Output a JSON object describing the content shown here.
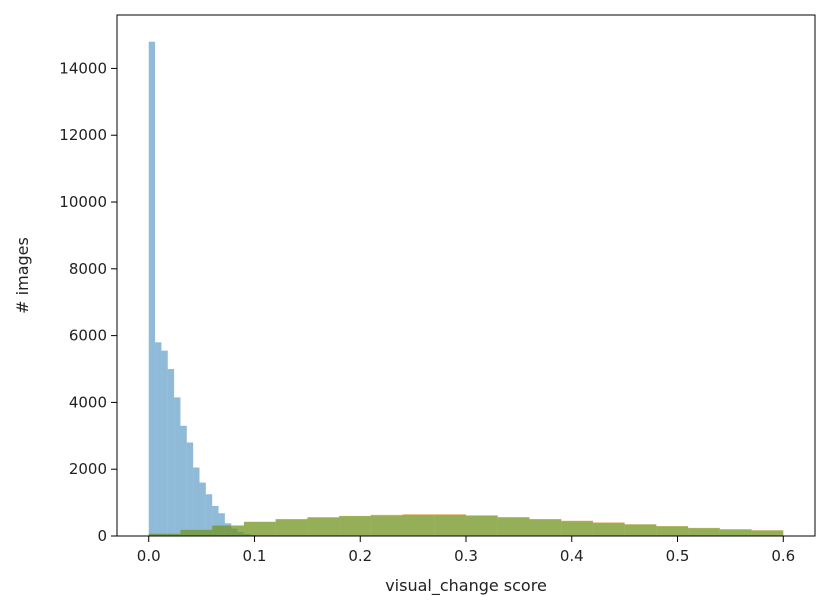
{
  "chart_data": {
    "type": "bar",
    "title": "",
    "xlabel": "visual_change score",
    "ylabel": "# images",
    "xlim": [
      -0.03,
      0.63
    ],
    "ylim": [
      0,
      15600
    ],
    "xticks": [
      0.0,
      0.1,
      0.2,
      0.3,
      0.4,
      0.5,
      0.6
    ],
    "xtick_labels": [
      "0.0",
      "0.1",
      "0.2",
      "0.3",
      "0.4",
      "0.5",
      "0.6"
    ],
    "yticks": [
      0,
      2000,
      4000,
      6000,
      8000,
      10000,
      12000,
      14000
    ],
    "ytick_labels": [
      "0",
      "2000",
      "4000",
      "6000",
      "8000",
      "10000",
      "12000",
      "14000"
    ],
    "grid": false,
    "legend": "none",
    "bin_width": 0.006,
    "bin_start": 0.0,
    "series": [
      {
        "color": "#1f77b4",
        "alpha": 0.5,
        "values": [
          14800,
          5800,
          5550,
          5000,
          4150,
          3300,
          2800,
          2050,
          1600,
          1250,
          900,
          680,
          380,
          220,
          120,
          60,
          30,
          10
        ]
      },
      {
        "color": "#ff7f0e",
        "alpha": 0.5,
        "x": [
          0.0,
          0.03,
          0.06,
          0.09,
          0.12,
          0.15,
          0.18,
          0.21,
          0.24,
          0.27,
          0.3,
          0.33,
          0.36,
          0.39,
          0.42,
          0.45,
          0.48,
          0.51,
          0.54,
          0.57,
          0.6
        ],
        "values": [
          20,
          120,
          260,
          380,
          480,
          540,
          590,
          620,
          650,
          660,
          650,
          600,
          540,
          480,
          440,
          380,
          330,
          270,
          220,
          190,
          160
        ]
      },
      {
        "color": "#2ca02c",
        "alpha": 0.5,
        "x": [
          0.0,
          0.03,
          0.06,
          0.09,
          0.12,
          0.15,
          0.18,
          0.21,
          0.24,
          0.27,
          0.3,
          0.33,
          0.36,
          0.39,
          0.42,
          0.45,
          0.48,
          0.51,
          0.54,
          0.57,
          0.6
        ],
        "values": [
          20,
          110,
          250,
          370,
          470,
          530,
          580,
          610,
          630,
          640,
          630,
          580,
          530,
          470,
          420,
          370,
          320,
          260,
          210,
          180,
          150
        ]
      }
    ]
  }
}
